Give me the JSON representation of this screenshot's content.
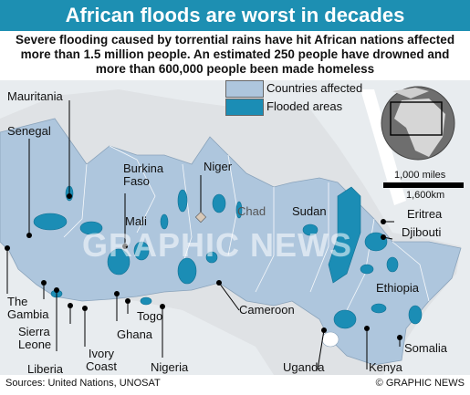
{
  "title": "African floods are worst in decades",
  "subtitle": "Severe flooding caused by torrential rains have hit African nations affected more than 1.5 million people. An estimated 250 people have drowned and more than 600,000 people been made homeless",
  "legend": {
    "affected_label": "Countries affected",
    "flooded_label": "Flooded areas"
  },
  "scale": {
    "miles": "1,000 miles",
    "km": "1,600km"
  },
  "labels": {
    "mauritania": "Mauritania",
    "senegal": "Senegal",
    "burkina_faso": "Burkina\nFaso",
    "niger": "Niger",
    "mali": "Mali",
    "chad": "Chad",
    "sudan": "Sudan",
    "eritrea": "Eritrea",
    "djibouti": "Djibouti",
    "ethiopia": "Ethiopia",
    "the_gambia": "The\nGambia",
    "sierra_leone": "Sierra\nLeone",
    "liberia": "Liberia",
    "ivory_coast": "Ivory\nCoast",
    "togo": "Togo",
    "ghana": "Ghana",
    "nigeria": "Nigeria",
    "cameroon": "Cameroon",
    "uganda": "Uganda",
    "kenya": "Kenya",
    "somalia": "Somalia"
  },
  "footer": {
    "sources": "Sources: United Nations, UNOSAT",
    "credit": "© GRAPHIC NEWS"
  },
  "watermark": "GRAPHIC NEWS",
  "colors": {
    "title_bg": "#1d8fb2",
    "affected": "#aec6dd",
    "flooded": "#1b8db5",
    "unaffected_land": "#dfe2e5",
    "water": "#ffffff"
  }
}
